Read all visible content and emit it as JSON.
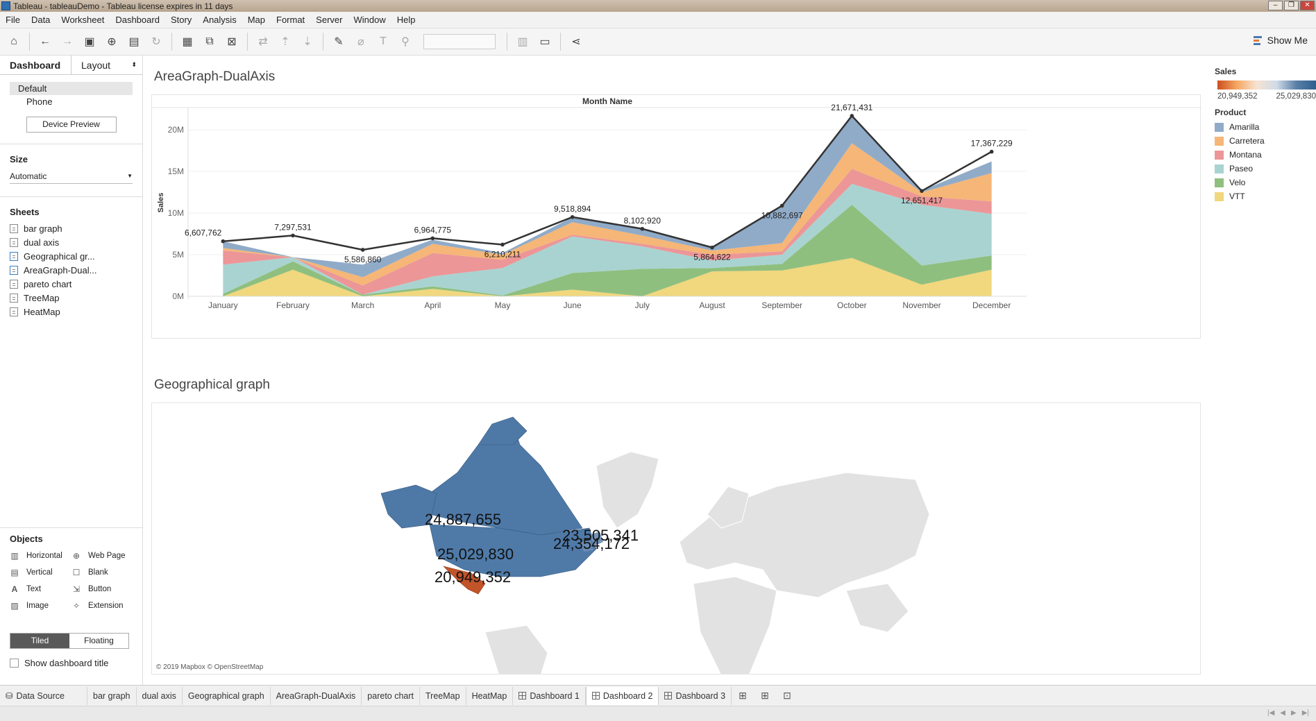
{
  "window": {
    "title": "Tableau - tableauDemo - Tableau license expires in 11 days"
  },
  "menu": [
    "File",
    "Data",
    "Worksheet",
    "Dashboard",
    "Story",
    "Analysis",
    "Map",
    "Format",
    "Server",
    "Window",
    "Help"
  ],
  "toolbar": {
    "show_me": "Show Me"
  },
  "left": {
    "tab_dashboard": "Dashboard",
    "tab_layout": "Layout",
    "devices": [
      "Default",
      "Phone"
    ],
    "device_preview": "Device Preview",
    "size_title": "Size",
    "size_value": "Automatic",
    "sheets_title": "Sheets",
    "sheets": [
      "bar graph",
      "dual axis",
      "Geographical gr...",
      "AreaGraph-Dual...",
      "pareto chart",
      "TreeMap",
      "HeatMap"
    ],
    "objects_title": "Objects",
    "objects": [
      "Horizontal",
      "Web Page",
      "Vertical",
      "Blank",
      "Text",
      "Button",
      "Image",
      "Extension"
    ],
    "tiled": "Tiled",
    "floating": "Floating",
    "show_title": "Show dashboard title"
  },
  "canvas": {
    "area_title": "AreaGraph-DualAxis",
    "map_title": "Geographical graph",
    "map_credit": "© 2019 Mapbox © OpenStreetMap",
    "map_labels": [
      "24,887,655",
      "25,029,830",
      "20,949,352",
      "23,505,341",
      "24,354,172"
    ]
  },
  "chart_data": {
    "type": "area",
    "title": "Month Name",
    "xlabel": "",
    "ylabel": "Sales",
    "categories": [
      "January",
      "February",
      "March",
      "April",
      "May",
      "June",
      "July",
      "August",
      "September",
      "October",
      "November",
      "December"
    ],
    "y_ticks": [
      "0M",
      "5M",
      "10M",
      "15M",
      "20M"
    ],
    "ylim": [
      0,
      22500000
    ],
    "stacked": true,
    "series": [
      {
        "name": "VTT",
        "color": "#f1d77d",
        "values": [
          0,
          3200000,
          0,
          900000,
          0,
          800000,
          0,
          3000000,
          3100000,
          4600000,
          1400000,
          3200000
        ]
      },
      {
        "name": "Velo",
        "color": "#8fbf7f",
        "values": [
          300000,
          1000000,
          200000,
          300000,
          100000,
          2000000,
          3300000,
          400000,
          800000,
          6400000,
          2300000,
          1700000
        ]
      },
      {
        "name": "Paseo",
        "color": "#a9d3d1",
        "values": [
          3500000,
          500000,
          0,
          1200000,
          3300000,
          4400000,
          2700000,
          900000,
          1100000,
          2500000,
          7300000,
          5000000
        ]
      },
      {
        "name": "Montana",
        "color": "#ec9697",
        "values": [
          1700000,
          0,
          1100000,
          2800000,
          1000000,
          200000,
          300000,
          700000,
          400000,
          1800000,
          1000000,
          1500000
        ]
      },
      {
        "name": "Carretera",
        "color": "#f5b677",
        "values": [
          300000,
          0,
          1000000,
          1100000,
          600000,
          1500000,
          1000000,
          500000,
          1000000,
          3100000,
          500000,
          3400000
        ]
      },
      {
        "name": "Amarilla",
        "color": "#90abc8",
        "values": [
          800000,
          0,
          1500000,
          500000,
          200000,
          600000,
          700000,
          300000,
          4400000,
          3300000,
          200000,
          1400000
        ]
      }
    ],
    "line": {
      "name": "Sales",
      "values": [
        6607762,
        7297531,
        5586860,
        6964775,
        6210211,
        9518894,
        8102920,
        5864622,
        10882697,
        21671431,
        12651417,
        17367229
      ],
      "labels": [
        "6,607,762",
        "7,297,531",
        "5,586,860",
        "6,964,775",
        "6,210,211",
        "9,518,894",
        "8,102,920",
        "5,864,622",
        "10,882,697",
        "21,671,431",
        "12,651,417",
        "17,367,229"
      ]
    }
  },
  "legend": {
    "sales_title": "Sales",
    "sales_min": "20,949,352",
    "sales_max": "25,029,830",
    "product_title": "Product",
    "products": [
      {
        "name": "Amarilla",
        "color": "#90abc8"
      },
      {
        "name": "Carretera",
        "color": "#f5b677"
      },
      {
        "name": "Montana",
        "color": "#ec9697"
      },
      {
        "name": "Paseo",
        "color": "#a9d3d1"
      },
      {
        "name": "Velo",
        "color": "#8fbf7f"
      },
      {
        "name": "VTT",
        "color": "#f1d77d"
      }
    ]
  },
  "tabs": [
    "Data Source",
    "bar graph",
    "dual axis",
    "Geographical graph",
    "AreaGraph-DualAxis",
    "pareto chart",
    "TreeMap",
    "HeatMap",
    "Dashboard 1",
    "Dashboard 2",
    "Dashboard 3"
  ],
  "active_tab": "Dashboard 2"
}
